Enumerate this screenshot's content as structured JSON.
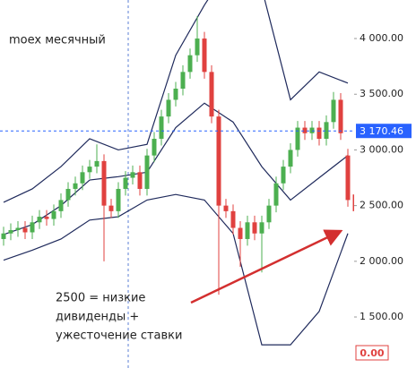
{
  "chart_data": {
    "type": "candlestick",
    "title": "moex месячный",
    "annotation": [
      "2500 = низкие",
      "дивиденды +",
      "ужесточение ставки"
    ],
    "open": [
      2200,
      2250,
      2280,
      2300,
      2260,
      2350,
      2400,
      2380,
      2450,
      2550,
      2650,
      2700,
      2800,
      2850,
      2900,
      2500,
      2450,
      2650,
      2750,
      2800,
      2650,
      2950,
      3100,
      3300,
      3450,
      3550,
      3700,
      3850,
      4000,
      3700,
      3300,
      2500,
      2450,
      2300,
      2200,
      2350,
      2250,
      2350,
      2500,
      2700,
      2850,
      3000,
      3200,
      3150,
      3200,
      3100,
      3250,
      3450,
      2950,
      2600
    ],
    "high": [
      2310,
      2340,
      2360,
      2360,
      2410,
      2460,
      2460,
      2510,
      2610,
      2710,
      2760,
      2860,
      2910,
      3050,
      2960,
      2560,
      2710,
      2810,
      2860,
      2860,
      3010,
      3160,
      3360,
      3510,
      3610,
      3760,
      3910,
      4200,
      4060,
      3760,
      3360,
      2560,
      2510,
      2360,
      2410,
      2410,
      2410,
      2560,
      2760,
      2910,
      3060,
      3260,
      3260,
      3260,
      3260,
      3310,
      3520,
      3510,
      3010,
      2650
    ],
    "low": [
      2140,
      2190,
      2220,
      2200,
      2200,
      2290,
      2320,
      2320,
      2390,
      2490,
      2590,
      2640,
      2740,
      2790,
      2000,
      2390,
      2390,
      2590,
      2690,
      2590,
      2590,
      2890,
      3040,
      3240,
      3390,
      3490,
      3640,
      3790,
      3640,
      3240,
      1700,
      2390,
      2240,
      1950,
      2140,
      2190,
      1900,
      2290,
      2440,
      2640,
      2790,
      2940,
      3090,
      3090,
      3040,
      3040,
      3190,
      3090,
      2490,
      2390
    ],
    "close": [
      2250,
      2280,
      2300,
      2260,
      2350,
      2400,
      2380,
      2450,
      2550,
      2650,
      2700,
      2800,
      2850,
      2900,
      2500,
      2450,
      2650,
      2750,
      2800,
      2650,
      2950,
      3100,
      3300,
      3450,
      3550,
      3700,
      3850,
      4000,
      3700,
      3300,
      2500,
      2450,
      2300,
      2200,
      2350,
      2250,
      2350,
      2500,
      2700,
      2850,
      3000,
      3200,
      3150,
      3200,
      3100,
      3250,
      3450,
      3150,
      2550,
      2450
    ],
    "up_color": "#4caf50",
    "down_color": "#e0413f",
    "bands": {
      "x": [
        0,
        4,
        8,
        12,
        16,
        20,
        24,
        28,
        32,
        36,
        40,
        44,
        48
      ],
      "color": "#1f2a5c",
      "series": [
        {
          "values": [
            2530,
            2650,
            2850,
            3100,
            3000,
            3050,
            3850,
            4300,
            4700,
            4450,
            3450,
            3700,
            3600
          ]
        },
        {
          "values": [
            2240,
            2330,
            2500,
            2730,
            2760,
            2800,
            3200,
            3420,
            3250,
            2850,
            2550,
            2750,
            2950
          ]
        },
        {
          "values": [
            2010,
            2100,
            2200,
            2370,
            2400,
            2550,
            2600,
            2550,
            2250,
            1250,
            1250,
            1550,
            2250
          ]
        }
      ]
    },
    "ylim": [
      1042,
      4346
    ],
    "yticks": [
      {
        "value": 1500,
        "label": "1 500.00"
      },
      {
        "value": 2000,
        "label": "2 000.00"
      },
      {
        "value": 2500,
        "label": "2 500.00"
      },
      {
        "value": 3000,
        "label": "3 000.00"
      },
      {
        "value": 3500,
        "label": "3 500.00"
      },
      {
        "value": 4000,
        "label": "4 000.00"
      }
    ],
    "crosshair": {
      "value": 3170.46,
      "label": "3 170.46",
      "color": "#2962ff"
    },
    "readout": {
      "value": 0,
      "label": "0.00",
      "color": "#e0413f"
    }
  }
}
